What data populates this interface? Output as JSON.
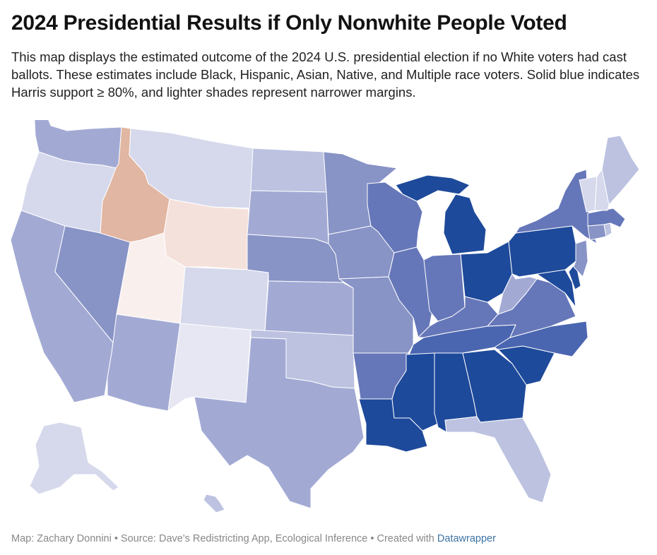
{
  "title": "2024 Presidential Results if Only Nonwhite People Voted",
  "description": "This map displays the estimated outcome of the 2024 U.S. presidential election if no White voters had cast ballots. These estimates include Black, Hispanic, Asian, Native, and Multiple race voters. Solid blue indicates Harris support ≥ 80%, and lighter shades represent narrower margins.",
  "footer": {
    "credit": "Map: Zachary Donnini",
    "separator": " • ",
    "source": "Source: Dave's Redistricting App, Ecological Inference",
    "created_with": "Created with ",
    "tool": "Datawrapper"
  },
  "palette": {
    "solid_blue": "#1e4a9b",
    "blue_6": "#4b66b0",
    "blue_5": "#6677b9",
    "blue_4": "#8893c6",
    "blue_3": "#a2aad4",
    "blue_2": "#bcc2e0",
    "blue_1": "#d6d9ec",
    "blue_0": "#e6e7f3",
    "red_1": "#f9f0ee",
    "red_2": "#f5e1db",
    "red_3": "#e1b6a2",
    "border": "#ffffff"
  },
  "states": [
    {
      "id": "WA",
      "shade": "blue_3"
    },
    {
      "id": "OR",
      "shade": "blue_1"
    },
    {
      "id": "CA",
      "shade": "blue_3"
    },
    {
      "id": "NV",
      "shade": "blue_4"
    },
    {
      "id": "ID",
      "shade": "red_3"
    },
    {
      "id": "MT",
      "shade": "blue_1"
    },
    {
      "id": "WY",
      "shade": "red_2"
    },
    {
      "id": "UT",
      "shade": "red_1"
    },
    {
      "id": "AZ",
      "shade": "blue_3"
    },
    {
      "id": "CO",
      "shade": "blue_1"
    },
    {
      "id": "NM",
      "shade": "blue_0"
    },
    {
      "id": "ND",
      "shade": "blue_2"
    },
    {
      "id": "SD",
      "shade": "blue_3"
    },
    {
      "id": "NE",
      "shade": "blue_4"
    },
    {
      "id": "KS",
      "shade": "blue_3"
    },
    {
      "id": "OK",
      "shade": "blue_2"
    },
    {
      "id": "TX",
      "shade": "blue_3"
    },
    {
      "id": "MN",
      "shade": "blue_4"
    },
    {
      "id": "IA",
      "shade": "blue_4"
    },
    {
      "id": "MO",
      "shade": "blue_4"
    },
    {
      "id": "AR",
      "shade": "blue_5"
    },
    {
      "id": "LA",
      "shade": "solid_blue"
    },
    {
      "id": "WI",
      "shade": "blue_5"
    },
    {
      "id": "IL",
      "shade": "blue_5"
    },
    {
      "id": "MI",
      "shade": "solid_blue"
    },
    {
      "id": "IN",
      "shade": "blue_5"
    },
    {
      "id": "OH",
      "shade": "solid_blue"
    },
    {
      "id": "KY",
      "shade": "blue_5"
    },
    {
      "id": "TN",
      "shade": "blue_6"
    },
    {
      "id": "MS",
      "shade": "solid_blue"
    },
    {
      "id": "AL",
      "shade": "solid_blue"
    },
    {
      "id": "GA",
      "shade": "solid_blue"
    },
    {
      "id": "FL",
      "shade": "blue_2"
    },
    {
      "id": "SC",
      "shade": "solid_blue"
    },
    {
      "id": "NC",
      "shade": "blue_6"
    },
    {
      "id": "VA",
      "shade": "blue_5"
    },
    {
      "id": "WV",
      "shade": "blue_3"
    },
    {
      "id": "PA",
      "shade": "solid_blue"
    },
    {
      "id": "NY",
      "shade": "blue_5"
    },
    {
      "id": "MD",
      "shade": "solid_blue"
    },
    {
      "id": "DE",
      "shade": "solid_blue"
    },
    {
      "id": "NJ",
      "shade": "blue_4"
    },
    {
      "id": "CT",
      "shade": "blue_4"
    },
    {
      "id": "RI",
      "shade": "blue_2"
    },
    {
      "id": "MA",
      "shade": "blue_5"
    },
    {
      "id": "VT",
      "shade": "blue_1"
    },
    {
      "id": "NH",
      "shade": "blue_1"
    },
    {
      "id": "ME",
      "shade": "blue_2"
    },
    {
      "id": "AK",
      "shade": "blue_1"
    },
    {
      "id": "HI",
      "shade": "blue_2"
    }
  ]
}
